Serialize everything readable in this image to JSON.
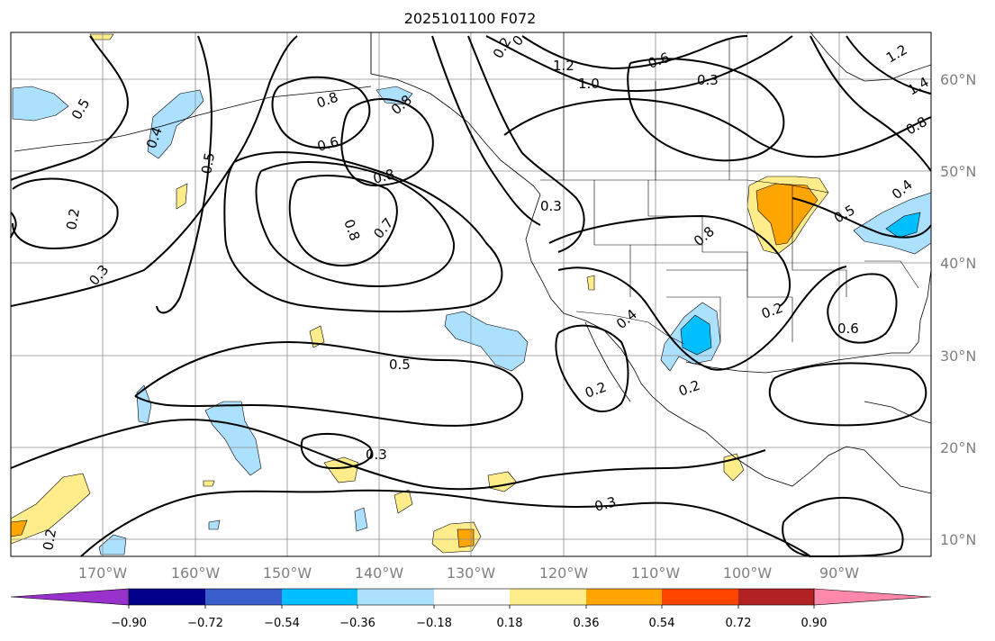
{
  "title": "2025101100 F072",
  "lat_labels": [
    "60°N",
    "50°N",
    "40°N",
    "30°N",
    "20°N",
    "10°N"
  ],
  "lon_labels": [
    "170°W",
    "160°W",
    "150°W",
    "140°W",
    "130°W",
    "120°W",
    "110°W",
    "100°W",
    "90°W"
  ],
  "colorbar": {
    "ticks": [
      "−0.90",
      "−0.72",
      "−0.54",
      "−0.36",
      "−0.18",
      "0.18",
      "0.36",
      "0.54",
      "0.72",
      "0.90"
    ],
    "colors": [
      "#9932cc",
      "#00008b",
      "#3a5fcd",
      "#00bfff",
      "#abe0ff",
      "#ffffff",
      "#ffec8b",
      "#ffa500",
      "#ff4500",
      "#b22222",
      "#ff88aa"
    ]
  },
  "contour_labels": [
    "0.5",
    "0.4",
    "0.5",
    "0.2",
    "0.3",
    "0.8",
    "0.6",
    "0.8",
    "0.8",
    "0.7",
    "0.8",
    "0.3",
    "1.0",
    "1.2",
    "0.6",
    "0.3",
    "0.8",
    "1.2",
    "1.4",
    "0.8",
    "0.5",
    "0.4",
    "0.6",
    "0.4",
    "0.2",
    "0.2",
    "0.2",
    "0.5",
    "0.3",
    "0.3",
    "0.2",
    "0.2",
    "0."
  ]
}
